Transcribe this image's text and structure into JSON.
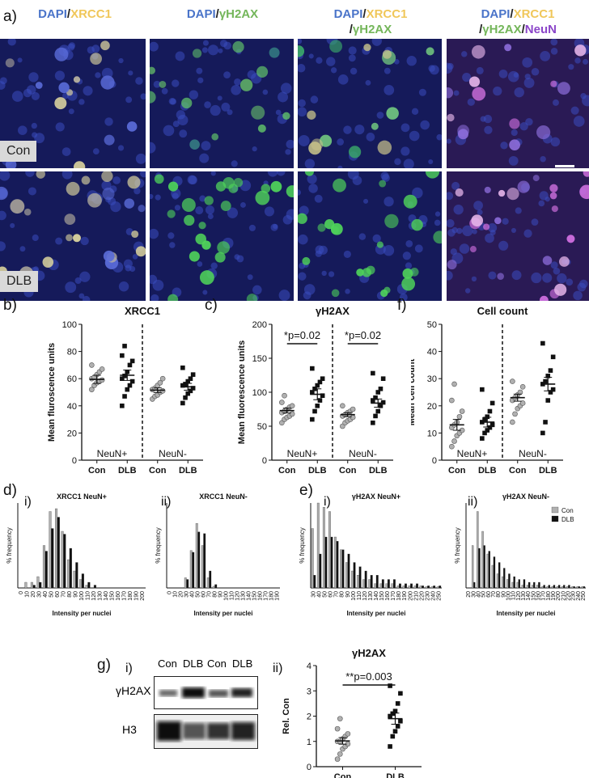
{
  "panel_labels": {
    "a": "a)",
    "b": "b)",
    "c": "c)",
    "f": "f)",
    "d": "d)",
    "e": "e)",
    "g": "g)",
    "di": "i)",
    "dii": "ii)",
    "ei": "i)",
    "eii": "ii)",
    "gi": "i)",
    "gii": "ii)"
  },
  "column_headers": [
    {
      "line1": [
        [
          "DAPI",
          "blue"
        ],
        [
          "/",
          "sl"
        ],
        [
          "XRCC1",
          "yel"
        ]
      ]
    },
    {
      "line1": [
        [
          "DAPI",
          "blue"
        ],
        [
          "/",
          "sl"
        ],
        [
          "γH2AX",
          "grn"
        ]
      ]
    },
    {
      "line1": [
        [
          "DAPI",
          "blue"
        ],
        [
          "/",
          "sl"
        ],
        [
          "XRCC1",
          "yel"
        ]
      ],
      "line2": [
        [
          "/",
          "sl"
        ],
        [
          "γH2AX",
          "grn"
        ]
      ]
    },
    {
      "line1": [
        [
          "DAPI",
          "blue"
        ],
        [
          "/",
          "sl"
        ],
        [
          "XRCC1",
          "yel"
        ]
      ],
      "line2": [
        [
          "/",
          "sl"
        ],
        [
          "γH2AX",
          "grn"
        ],
        [
          "/",
          "sl"
        ],
        [
          "NeuN",
          "pur"
        ]
      ]
    }
  ],
  "row_tags": {
    "con": "Con",
    "dlb": "DLB"
  },
  "colors": {
    "dapi": "#4a74c9",
    "xrcc1": "#f0c75a",
    "gh2ax": "#74b65a",
    "neun": "#8b45c9",
    "con": "#b0b0b0",
    "dlb": "#111111"
  },
  "chart_data": [
    {
      "id": "b",
      "type": "scatter",
      "title": "XRCC1",
      "ylabel": "Mean fluroscence units",
      "ylim": [
        0,
        100
      ],
      "yticks": [
        0,
        20,
        40,
        60,
        80,
        100
      ],
      "categories": [
        "Con",
        "DLB",
        "Con",
        "DLB"
      ],
      "group_labels": [
        "NeuN+",
        "NeuN-"
      ],
      "series": [
        {
          "values": [
            52,
            55,
            57,
            58,
            59,
            60,
            61,
            63,
            65,
            67,
            70
          ]
        },
        {
          "values": [
            40,
            47,
            52,
            55,
            58,
            60,
            62,
            65,
            70,
            73,
            77,
            84
          ]
        },
        {
          "values": [
            45,
            47,
            48,
            50,
            51,
            52,
            53,
            55,
            57,
            60
          ]
        },
        {
          "values": [
            42,
            46,
            49,
            51,
            53,
            55,
            56,
            58,
            60,
            63,
            68
          ]
        }
      ],
      "means": [
        59.5,
        62.5,
        51.5,
        54
      ],
      "sem": [
        3,
        3.8,
        1.7,
        2.5
      ]
    },
    {
      "id": "c",
      "type": "scatter",
      "title": "γH2AX",
      "ylabel": "Mean fluorescence units",
      "ylim": [
        0,
        200
      ],
      "yticks": [
        0,
        50,
        100,
        150,
        200
      ],
      "categories": [
        "Con",
        "DLB",
        "Con",
        "DLB"
      ],
      "group_labels": [
        "NeuN+",
        "NeuN-"
      ],
      "annotations": [
        "*p=0.02",
        "*p=0.02"
      ],
      "series": [
        {
          "values": [
            55,
            60,
            63,
            65,
            68,
            70,
            72,
            75,
            78,
            80,
            85,
            95
          ]
        },
        {
          "values": [
            60,
            72,
            80,
            88,
            95,
            100,
            105,
            110,
            115,
            120,
            135
          ]
        },
        {
          "values": [
            50,
            55,
            58,
            60,
            63,
            65,
            67,
            70,
            72,
            75,
            80
          ]
        },
        {
          "values": [
            55,
            65,
            72,
            80,
            85,
            88,
            92,
            100,
            105,
            120,
            128
          ]
        }
      ],
      "means": [
        73,
        97,
        67,
        84
      ],
      "sem": [
        3.5,
        8,
        3,
        6
      ]
    },
    {
      "id": "f",
      "type": "scatter",
      "title": "Cell count",
      "ylabel": "Mean cell count",
      "ylim": [
        0,
        50
      ],
      "yticks": [
        0,
        10,
        20,
        30,
        40,
        50
      ],
      "categories": [
        "Con",
        "DLB",
        "Con",
        "DLB"
      ],
      "group_labels": [
        "NeuN+",
        "NeuN-"
      ],
      "series": [
        {
          "values": [
            5,
            7,
            9,
            10,
            11,
            12,
            13,
            14,
            16,
            18,
            22,
            28
          ]
        },
        {
          "values": [
            8,
            10,
            11,
            12,
            13,
            14,
            15,
            16,
            18,
            21,
            26
          ]
        },
        {
          "values": [
            14,
            17,
            19,
            20,
            21,
            22,
            23,
            24,
            25,
            27,
            29
          ]
        },
        {
          "values": [
            10,
            14,
            22,
            25,
            26,
            28,
            29,
            31,
            33,
            38,
            43
          ]
        }
      ],
      "means": [
        13,
        14,
        23,
        28
      ],
      "sem": [
        2,
        1.8,
        1.3,
        2.5
      ]
    },
    {
      "id": "d-i",
      "type": "bar",
      "title": "XRCC1 NeuN+",
      "xlabel": "Intensity per nuclei",
      "ylabel": "% frequency",
      "ylim": [
        0,
        30
      ],
      "categories": [
        "0",
        "10",
        "20",
        "30",
        "40",
        "50",
        "60",
        "70",
        "80",
        "90",
        "100",
        "110",
        "120",
        "130",
        "140",
        "150",
        "160",
        "170",
        "180",
        "190",
        "200"
      ],
      "series": [
        {
          "name": "Con",
          "values": [
            0,
            2,
            2,
            4,
            15,
            27,
            28,
            20,
            10,
            6,
            3,
            1,
            0,
            0,
            0,
            0,
            0,
            0,
            0,
            0,
            0
          ]
        },
        {
          "name": "DLB",
          "values": [
            0,
            0,
            1,
            2,
            13,
            21,
            25,
            19,
            14,
            9,
            5,
            2,
            1,
            0,
            0,
            0,
            0,
            0,
            0,
            0,
            0
          ]
        }
      ]
    },
    {
      "id": "d-ii",
      "type": "bar",
      "title": "XRCC1 NeuN-",
      "xlabel": "Intensity per nuclei",
      "ylabel": "% frequency",
      "ylim": [
        0,
        50
      ],
      "categories": [
        "0",
        "10",
        "20",
        "30",
        "40",
        "50",
        "60",
        "70",
        "80",
        "90",
        "100",
        "110",
        "120",
        "130",
        "140",
        "150",
        "160",
        "170",
        "180",
        "190"
      ],
      "series": [
        {
          "name": "Con",
          "values": [
            0,
            0,
            0,
            6,
            22,
            38,
            25,
            6,
            1,
            0,
            0,
            0,
            0,
            0,
            0,
            0,
            0,
            0,
            0,
            0
          ]
        },
        {
          "name": "DLB",
          "values": [
            0,
            0,
            0,
            5,
            21,
            33,
            32,
            10,
            2,
            0,
            0,
            0,
            0,
            0,
            0,
            0,
            0,
            0,
            0,
            0
          ]
        }
      ]
    },
    {
      "id": "e-i",
      "type": "bar",
      "title": "γH2AX NeuN+",
      "xlabel": "Intensity per nuclei",
      "ylabel": "% frequency",
      "ylim": [
        0,
        20
      ],
      "categories": [
        "30",
        "40",
        "50",
        "60",
        "70",
        "80",
        "90",
        "100",
        "110",
        "120",
        "130",
        "140",
        "150",
        "160",
        "170",
        "180",
        "190",
        "200",
        "210",
        "220",
        "230",
        "240",
        "250"
      ],
      "series": [
        {
          "name": "Con",
          "values": [
            14,
            20,
            19,
            18,
            12,
            9,
            6,
            4,
            3,
            2,
            2,
            1,
            1,
            1,
            1,
            0.5,
            0.5,
            0.5,
            0.5,
            0.5,
            0.3,
            0.3,
            0.3
          ]
        },
        {
          "name": "DLB",
          "values": [
            3,
            8,
            12,
            12,
            11,
            9,
            8,
            6,
            5,
            4,
            3,
            3,
            2,
            2,
            2,
            1,
            1,
            1,
            1,
            0.5,
            0.5,
            0.5,
            0.5
          ]
        }
      ]
    },
    {
      "id": "e-ii",
      "type": "bar",
      "title": "γH2AX NeuN-",
      "xlabel": "Intensity per nuclei",
      "ylabel": "% frequency",
      "ylim": [
        0,
        30
      ],
      "categories": [
        "20",
        "30",
        "40",
        "50",
        "60",
        "70",
        "80",
        "90",
        "100",
        "110",
        "120",
        "130",
        "140",
        "150",
        "160",
        "170",
        "180",
        "190",
        "200",
        "210",
        "220",
        "230",
        "240",
        "250"
      ],
      "legend": "top-right",
      "series": [
        {
          "name": "Con",
          "values": [
            0,
            15,
            27,
            20,
            12,
            8,
            5,
            4,
            3,
            2,
            2,
            1,
            1,
            1,
            1,
            0.5,
            0.5,
            0.5,
            0.5,
            0.5,
            0.5,
            0.5,
            0.5,
            0.5
          ]
        },
        {
          "name": "DLB",
          "values": [
            0,
            2,
            14,
            15,
            13,
            11,
            9,
            7,
            5,
            4,
            3,
            3,
            2,
            2,
            2,
            1,
            1,
            1,
            1,
            1,
            1,
            0.5,
            0.5,
            0.5
          ]
        }
      ]
    },
    {
      "id": "g-ii",
      "type": "scatter",
      "title": "γH2AX",
      "ylabel": "Rel. Con",
      "ylim": [
        0,
        4
      ],
      "yticks": [
        0,
        1,
        2,
        3,
        4
      ],
      "categories": [
        "Con",
        "DLB"
      ],
      "annotations": [
        "**p=0.003"
      ],
      "series": [
        {
          "values": [
            0.3,
            0.5,
            0.7,
            0.8,
            0.9,
            1.0,
            1.0,
            1.1,
            1.2,
            1.3,
            1.5,
            1.9
          ]
        },
        {
          "values": [
            0.8,
            1.2,
            1.4,
            1.6,
            1.8,
            2.0,
            2.1,
            2.2,
            2.5,
            2.9,
            3.2
          ]
        }
      ],
      "means": [
        1.02,
        1.9
      ],
      "sem": [
        0.13,
        0.22
      ]
    }
  ],
  "blot": {
    "lanes": [
      "Con",
      "DLB",
      "Con",
      "DLB"
    ],
    "rows": [
      "γH2AX",
      "H3"
    ]
  }
}
